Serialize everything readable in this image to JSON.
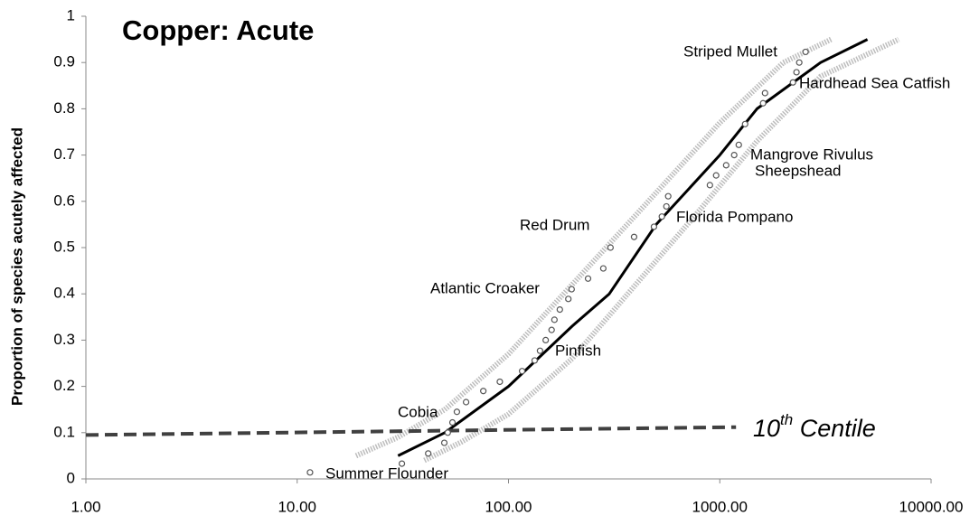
{
  "chart_data": {
    "type": "scatter",
    "title": "Copper: Acute",
    "ylabel": "Proportion of species acutely affected",
    "xscale": "log",
    "xlim": [
      1,
      10000
    ],
    "ylim": [
      0,
      1
    ],
    "xticks": [
      {
        "value": 1,
        "label": "1.00"
      },
      {
        "value": 10,
        "label": "10.00"
      },
      {
        "value": 100,
        "label": "100.00"
      },
      {
        "value": 1000,
        "label": "1000.00"
      },
      {
        "value": 10000,
        "label": "10000.00"
      }
    ],
    "yticks": [
      0,
      0.1,
      0.2,
      0.3,
      0.4,
      0.5,
      0.6,
      0.7,
      0.8,
      0.9,
      1
    ],
    "series": [
      {
        "kind": "upper-band",
        "color": "#bdbdbd",
        "x": [
          19,
          30,
          50,
          100,
          200,
          400,
          1000,
          2000,
          3360
        ],
        "values": [
          0.05,
          0.09,
          0.15,
          0.27,
          0.42,
          0.57,
          0.77,
          0.9,
          0.95
        ]
      },
      {
        "kind": "lower-band",
        "color": "#bdbdbd",
        "x": [
          40,
          60,
          100,
          200,
          400,
          800,
          1500,
          3000,
          7020
        ],
        "values": [
          0.04,
          0.08,
          0.14,
          0.26,
          0.42,
          0.58,
          0.73,
          0.87,
          0.95
        ]
      },
      {
        "kind": "fit",
        "color": "#000000",
        "x": [
          30,
          50,
          100,
          200,
          300,
          500,
          1000,
          1500,
          3000,
          5000
        ],
        "values": [
          0.05,
          0.1,
          0.2,
          0.33,
          0.4,
          0.55,
          0.7,
          0.8,
          0.9,
          0.95
        ]
      },
      {
        "kind": "centile",
        "color": "#404040",
        "x": [
          1,
          1194
        ],
        "values": [
          0.095,
          0.112
        ]
      },
      {
        "kind": "points",
        "color": "#555555",
        "x": [
          11.5,
          31.3,
          41.7,
          49.7,
          51.6,
          54.3,
          57,
          63,
          76,
          91,
          116,
          133,
          141,
          150,
          160,
          165,
          175,
          192,
          199,
          238,
          281,
          304,
          393,
          488,
          532,
          559,
          570,
          898,
          961,
          1072,
          1170,
          1230,
          1318,
          1603,
          1637,
          2220,
          2307,
          2377,
          2547
        ],
        "values": [
          0.014,
          0.033,
          0.055,
          0.078,
          0.1,
          0.122,
          0.145,
          0.166,
          0.19,
          0.21,
          0.233,
          0.256,
          0.277,
          0.3,
          0.322,
          0.344,
          0.366,
          0.389,
          0.41,
          0.433,
          0.455,
          0.5,
          0.523,
          0.545,
          0.567,
          0.589,
          0.611,
          0.635,
          0.656,
          0.678,
          0.7,
          0.722,
          0.767,
          0.812,
          0.834,
          0.857,
          0.879,
          0.9,
          0.923
        ]
      }
    ],
    "centile_label": {
      "main": "10",
      "sup": "th",
      "rest": " Centile"
    },
    "species_labels": [
      "Striped Mullet",
      "Hardhead Sea Catfish",
      "Mangrove Rivulus",
      "Sheepshead",
      "Florida Pompano",
      "Red Drum",
      "Atlantic Croaker",
      "Pinfish",
      "Cobia",
      "Summer Flounder"
    ]
  }
}
